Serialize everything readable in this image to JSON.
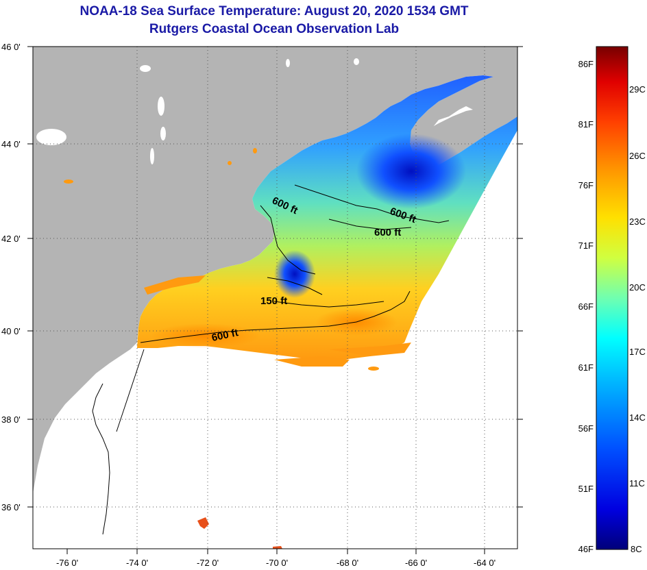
{
  "header": {
    "title": "NOAA-18 Sea Surface Temperature:  August 20, 2020 1534 GMT",
    "subtitle": "Rutgers Coastal Ocean Observation Lab"
  },
  "map": {
    "lat_labels": [
      "46 0'",
      "44 0'",
      "42 0'",
      "40 0'",
      "38 0'",
      "36 0'"
    ],
    "lon_labels": [
      "-76 0'",
      "-74 0'",
      "-72 0'",
      "-70 0'",
      "-68 0'",
      "-66 0'",
      "-64 0'"
    ],
    "contour_labels": {
      "a": "600 ft",
      "b": "600 ft",
      "c": "600 ft",
      "d": "150 ft",
      "e": "600 ft"
    }
  },
  "colorbar": {
    "fahrenheit_labels": [
      "86F",
      "81F",
      "76F",
      "71F",
      "66F",
      "61F",
      "56F",
      "51F",
      "46F"
    ],
    "celsius_labels": [
      "29C",
      "26C",
      "23C",
      "20C",
      "17C",
      "14C",
      "11C",
      "8C"
    ]
  },
  "colors": {
    "title": "#1a1aa6",
    "land": "#b4b4b4",
    "ocean_bg": "#ffffff"
  }
}
